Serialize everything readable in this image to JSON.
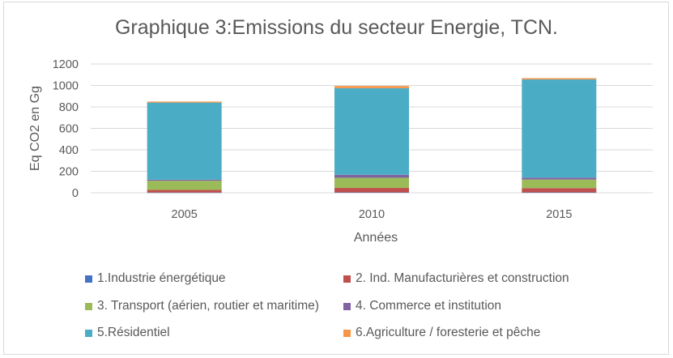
{
  "chart_data": {
    "type": "bar",
    "stacked": true,
    "title": "Graphique 3:Emissions du secteur Energie, TCN.",
    "xlabel": "Années",
    "ylabel": "Eq CO2 en Gg",
    "ylim": [
      0,
      1200
    ],
    "yticks": [
      "0",
      "200",
      "400",
      "600",
      "800",
      "1000",
      "1200"
    ],
    "grid": true,
    "legend_position": "bottom",
    "categories": [
      "2005",
      "2010",
      "2015"
    ],
    "series": [
      {
        "name": "1.Industrie énergétique",
        "color": "#4472c4",
        "values": [
          2,
          3,
          3
        ]
      },
      {
        "name": "2. Ind. Manufacturières et construction",
        "color": "#c0504d",
        "values": [
          25,
          42,
          40
        ]
      },
      {
        "name": "3. Transport (aérien, routier et maritime)",
        "color": "#9bbb59",
        "values": [
          85,
          95,
          80
        ]
      },
      {
        "name": "4. Commerce et institution",
        "color": "#8064a2",
        "values": [
          10,
          28,
          18
        ]
      },
      {
        "name": "5.Résidentiel",
        "color": "#4bacc6",
        "values": [
          718,
          807,
          915
        ]
      },
      {
        "name": "6.Agriculture / foresterie et pêche",
        "color": "#f79646",
        "values": [
          10,
          20,
          12
        ]
      }
    ]
  }
}
